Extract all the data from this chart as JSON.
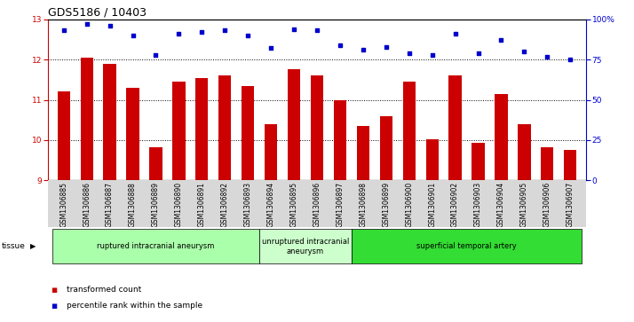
{
  "title": "GDS5186 / 10403",
  "samples": [
    "GSM1306885",
    "GSM1306886",
    "GSM1306887",
    "GSM1306888",
    "GSM1306889",
    "GSM1306890",
    "GSM1306891",
    "GSM1306892",
    "GSM1306893",
    "GSM1306894",
    "GSM1306895",
    "GSM1306896",
    "GSM1306897",
    "GSM1306898",
    "GSM1306899",
    "GSM1306900",
    "GSM1306901",
    "GSM1306902",
    "GSM1306903",
    "GSM1306904",
    "GSM1306905",
    "GSM1306906",
    "GSM1306907"
  ],
  "bar_values": [
    11.2,
    12.05,
    11.9,
    11.3,
    9.83,
    11.45,
    11.55,
    11.6,
    11.35,
    10.4,
    11.75,
    11.6,
    11.0,
    10.35,
    10.6,
    11.45,
    10.02,
    11.6,
    9.93,
    11.15,
    10.4,
    9.83,
    9.75
  ],
  "scatter_values": [
    93,
    97,
    96,
    90,
    78,
    91,
    92,
    93,
    90,
    82,
    94,
    93,
    84,
    81,
    83,
    79,
    78,
    91,
    79,
    87,
    80,
    77,
    75
  ],
  "ylim_left": [
    9,
    13
  ],
  "ylim_right": [
    0,
    100
  ],
  "yticks_left": [
    9,
    10,
    11,
    12,
    13
  ],
  "yticks_right": [
    0,
    25,
    50,
    75,
    100
  ],
  "ytick_labels_right": [
    "0",
    "25",
    "50",
    "75",
    "100%"
  ],
  "bar_color": "#cc0000",
  "scatter_color": "#0000cc",
  "bar_bottom": 9,
  "groups": [
    {
      "label": "ruptured intracranial aneurysm",
      "start": 0,
      "end": 9,
      "color": "#aaffaa"
    },
    {
      "label": "unruptured intracranial\naneurysm",
      "start": 9,
      "end": 13,
      "color": "#ccffcc"
    },
    {
      "label": "superficial temporal artery",
      "start": 13,
      "end": 23,
      "color": "#33dd33"
    }
  ],
  "tissue_label": "tissue",
  "legend_bar_label": "transformed count",
  "legend_scatter_label": "percentile rank within the sample",
  "background_color": "#d8d8d8",
  "plot_bg_color": "#ffffff",
  "title_fontsize": 9,
  "tick_fontsize": 6.5,
  "label_fontsize": 7
}
